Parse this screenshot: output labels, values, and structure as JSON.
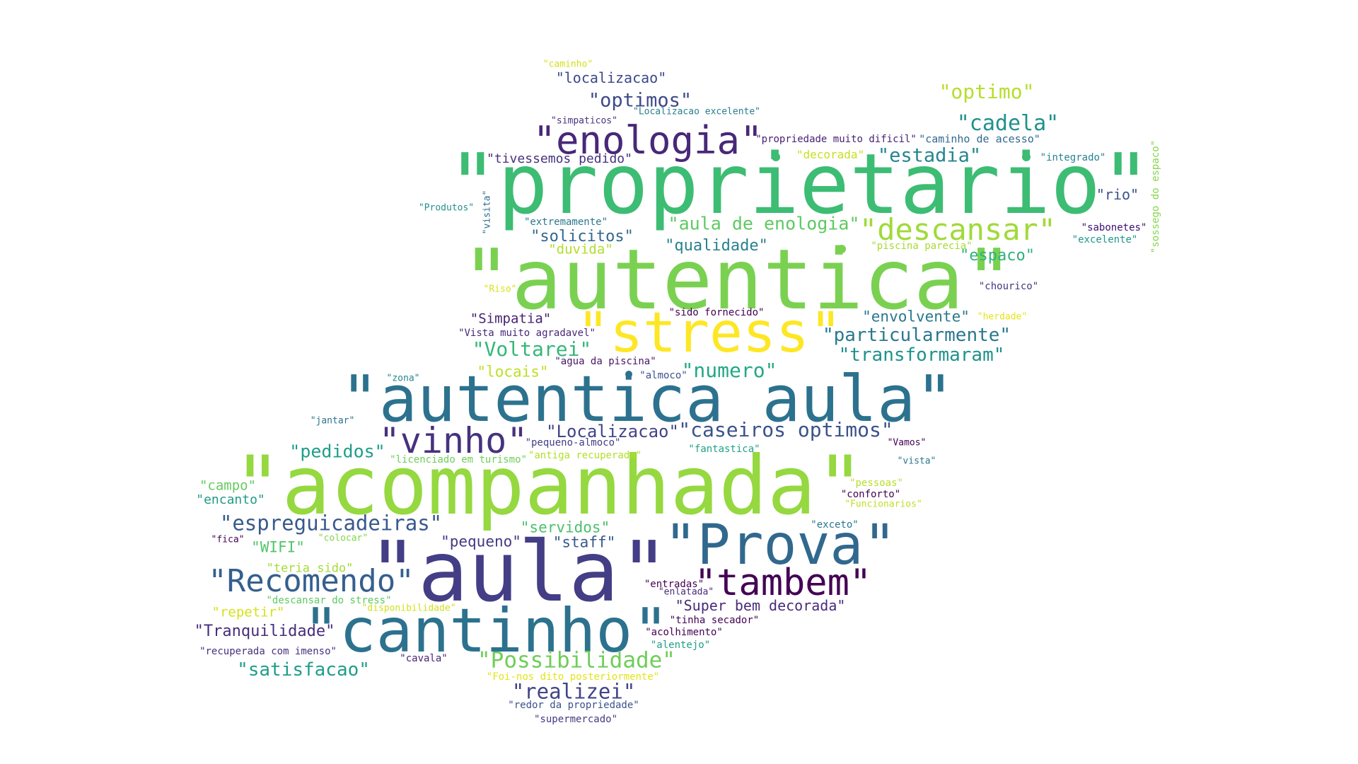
{
  "word_cloud": {
    "words": [
      {
        "text": "\"proprietario\"",
        "color": "#3dbc74"
      },
      {
        "text": "\"autentica\"",
        "color": "#7ad151"
      },
      {
        "text": "\"acompanhada\"",
        "color": "#95d840"
      },
      {
        "text": "\"autentica aula\"",
        "color": "#2c728e"
      },
      {
        "text": "\"aula\"",
        "color": "#433e85"
      },
      {
        "text": "\"stress\"",
        "color": "#fde725"
      },
      {
        "text": "\"Prova\"",
        "color": "#31688e"
      },
      {
        "text": "\"cantinho\"",
        "color": "#2c728e"
      },
      {
        "text": "\"tambem\"",
        "color": "#440154"
      },
      {
        "text": "\"enologia\"",
        "color": "#482878"
      },
      {
        "text": "\"Recomendo\"",
        "color": "#355f8d"
      },
      {
        "text": "\"vinho\"",
        "color": "#46327e"
      },
      {
        "text": "\"descansar\"",
        "color": "#a0da39"
      },
      {
        "text": "\"caseiros optimos\"",
        "color": "#3b528b"
      },
      {
        "text": "\"espreguicadeiras\"",
        "color": "#38598c"
      },
      {
        "text": "\"particularmente\"",
        "color": "#2a788e"
      },
      {
        "text": "\"transformaram\"",
        "color": "#20928c"
      },
      {
        "text": "\"cadela\"",
        "color": "#21918c"
      },
      {
        "text": "\"Possibilidade\"",
        "color": "#6ece58"
      },
      {
        "text": "\"aula de enologia\"",
        "color": "#5ec962"
      },
      {
        "text": "\"realizei\"",
        "color": "#414487"
      },
      {
        "text": "\"optimo\"",
        "color": "#b5de2b"
      },
      {
        "text": "\"optimos\"",
        "color": "#3e4a89"
      },
      {
        "text": "\"estadia\"",
        "color": "#25858e"
      },
      {
        "text": "\"Voltarei\"",
        "color": "#35b779"
      },
      {
        "text": "\"numero\"",
        "color": "#22a884"
      },
      {
        "text": "\"Localizacao\"",
        "color": "#414487"
      },
      {
        "text": "\"pedidos\"",
        "color": "#1f9e89"
      },
      {
        "text": "\"satisfacao\"",
        "color": "#1f9e89"
      },
      {
        "text": "\"Tranquilidade\"",
        "color": "#472d7b"
      },
      {
        "text": "\"Super bem decorada\"",
        "color": "#472c7a"
      },
      {
        "text": "\"localizacao\"",
        "color": "#3e4989"
      },
      {
        "text": "\"solicitos\"",
        "color": "#31688e"
      },
      {
        "text": "\"qualidade\"",
        "color": "#26828e"
      },
      {
        "text": "\"envolvente\"",
        "color": "#2a788e"
      },
      {
        "text": "\"espaco\"",
        "color": "#2db27d"
      },
      {
        "text": "\"Simpatia\"",
        "color": "#482173"
      },
      {
        "text": "\"tivessemos pedido\"",
        "color": "#46327e"
      },
      {
        "text": "\"pequeno\"",
        "color": "#443983"
      },
      {
        "text": "\"staff\"",
        "color": "#375a8c"
      },
      {
        "text": "\"servidos\"",
        "color": "#4ac16d"
      },
      {
        "text": "\"WIFI\"",
        "color": "#52c569"
      },
      {
        "text": "\"locais\"",
        "color": "#bddf26"
      },
      {
        "text": "\"rio\"",
        "color": "#3b528b"
      },
      {
        "text": "\"duvida\"",
        "color": "#b2dd2c"
      },
      {
        "text": "\"campo\"",
        "color": "#65cb5e"
      },
      {
        "text": "\"encanto\"",
        "color": "#1f9a8a"
      },
      {
        "text": "\"teria sido\"",
        "color": "#a5db36"
      },
      {
        "text": "\"repetir\"",
        "color": "#d5e21a"
      },
      {
        "text": "\"decorada\"",
        "color": "#c8e020"
      },
      {
        "text": "\"integrado\"",
        "color": "#26828e"
      },
      {
        "text": "\"caminho de acesso\"",
        "color": "#31688e"
      },
      {
        "text": "\"propriedade muito dificil\"",
        "color": "#482173"
      },
      {
        "text": "\"simpaticos\"",
        "color": "#46337f"
      },
      {
        "text": "\"Localizacao excelente\"",
        "color": "#277f8e"
      },
      {
        "text": "\"caminho\"",
        "color": "#d2e21b"
      },
      {
        "text": "\"Produtos\"",
        "color": "#21918c"
      },
      {
        "text": "\"visita\"",
        "color": "#2f6c8e"
      },
      {
        "text": "\"extremamente\"",
        "color": "#2a788e"
      },
      {
        "text": "\"sabonetes\"",
        "color": "#3b0f70"
      },
      {
        "text": "\"excelente\"",
        "color": "#1f988b"
      },
      {
        "text": "\"piscina parecia\"",
        "color": "#a8db34"
      },
      {
        "text": "\"sossego do espaco\"",
        "color": "#86d549"
      },
      {
        "text": "\"chourico\"",
        "color": "#453781"
      },
      {
        "text": "\"Riso\"",
        "color": "#d8e219"
      },
      {
        "text": "\"sido fornecido\"",
        "color": "#440154"
      },
      {
        "text": "\"herdade\"",
        "color": "#e5e419"
      },
      {
        "text": "\"Vista muito agradavel\"",
        "color": "#482878"
      },
      {
        "text": "\"agua da piscina\"",
        "color": "#481668"
      },
      {
        "text": "\"zona\"",
        "color": "#25838e"
      },
      {
        "text": "\"almoco\"",
        "color": "#3b528b"
      },
      {
        "text": "\"jantar\"",
        "color": "#2c728e"
      },
      {
        "text": "\"licenciado em turismo\"",
        "color": "#6ece58"
      },
      {
        "text": "\"pequeno-almoco\"",
        "color": "#433e85"
      },
      {
        "text": "\"antiga recuperada\"",
        "color": "#b5de2b"
      },
      {
        "text": "\"fantastica\"",
        "color": "#20a386"
      },
      {
        "text": "\"Vamos\"",
        "color": "#440154"
      },
      {
        "text": "\"vista\"",
        "color": "#2a788e"
      },
      {
        "text": "\"pessoas\"",
        "color": "#b8de29"
      },
      {
        "text": "\"conforto\"",
        "color": "#440154"
      },
      {
        "text": "\"Funcionarios\"",
        "color": "#c0df25"
      },
      {
        "text": "\"exceto\"",
        "color": "#2a768e"
      },
      {
        "text": "\"fica\"",
        "color": "#440154"
      },
      {
        "text": "\"colocar\"",
        "color": "#84d44b"
      },
      {
        "text": "\"entradas\"",
        "color": "#440154"
      },
      {
        "text": "\"enlatada\"",
        "color": "#472a7a"
      },
      {
        "text": "\"descansar do stress\"",
        "color": "#5ec962"
      },
      {
        "text": "\"disponibilidade\"",
        "color": "#d0e11c"
      },
      {
        "text": "\"tinha secador\"",
        "color": "#440154"
      },
      {
        "text": "\"acolhimento\"",
        "color": "#440154"
      },
      {
        "text": "\"alentejo\"",
        "color": "#1fa088"
      },
      {
        "text": "\"recuperada com imenso\"",
        "color": "#46327e"
      },
      {
        "text": "\"cavala\"",
        "color": "#482475"
      },
      {
        "text": "\"Foi-nos dito posteriormente\"",
        "color": "#e2e418"
      },
      {
        "text": "\"redor da propriedade\"",
        "color": "#3b528b"
      },
      {
        "text": "\"supermercado\"",
        "color": "#443a83"
      }
    ]
  }
}
